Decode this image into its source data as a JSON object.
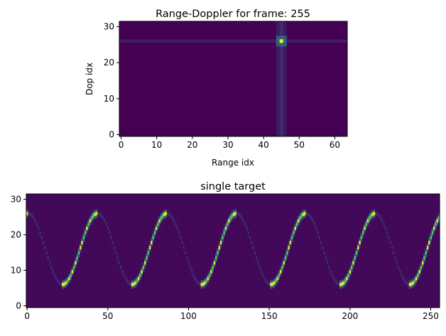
{
  "chart_data": [
    {
      "type": "heatmap",
      "title": "Range-Doppler for frame: 255",
      "xlabel": "Range idx",
      "ylabel": "Dop idx",
      "xlim": [
        -0.5,
        63.5
      ],
      "ylim": [
        31.5,
        -0.5
      ],
      "xticks": [
        "0",
        "10",
        "20",
        "30",
        "40",
        "50",
        "60"
      ],
      "yticks": [
        "0",
        "10",
        "20",
        "30"
      ],
      "grid": false,
      "colormap": "viridis",
      "peak": {
        "range_idx": 45,
        "doppler_idx": 26
      }
    },
    {
      "type": "heatmap",
      "title": "single target",
      "xlabel": "",
      "ylabel": "",
      "xlim": [
        -0.5,
        255.5
      ],
      "ylim": [
        31.5,
        -0.5
      ],
      "xticks": [
        "0",
        "50",
        "100",
        "150",
        "200",
        "250"
      ],
      "yticks": [
        "0",
        "10",
        "20",
        "30"
      ],
      "grid": false,
      "colormap": "viridis",
      "trace": {
        "period_frames": 43,
        "doppler_min": 6,
        "doppler_max": 26,
        "first_peak_frame": 22
      }
    }
  ],
  "colors": {
    "background": "#440154",
    "glow": "#3b528b",
    "mid": "#21918c",
    "bright": "#5ec962",
    "peak": "#fde725"
  }
}
